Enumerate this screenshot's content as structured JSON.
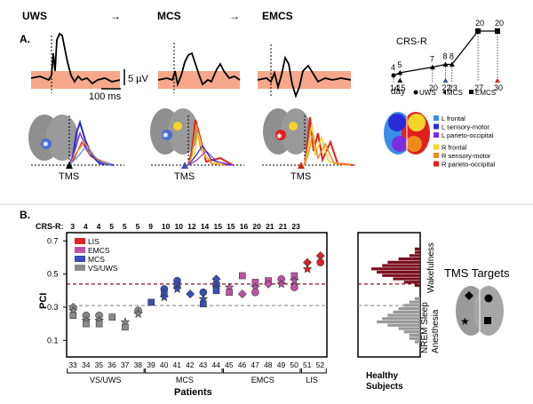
{
  "panel_a": {
    "label": "A.",
    "stages": [
      "UWS",
      "MCS",
      "EMCS"
    ],
    "arrow": "→",
    "scale_voltage": "5 µV",
    "scale_time": "100 ms",
    "tms_label": "TMS",
    "legend_left": [
      "L frontal",
      "L sensory-motor",
      "L parieto-occipital"
    ],
    "legend_right": [
      "R frontal",
      "R sensory-motor",
      "R parieto-occipital"
    ],
    "legend_colors": [
      "#3a8ee8",
      "#2b2bd6",
      "#7b2ee0",
      "#f5d52a",
      "#f08a1c",
      "#e02020"
    ],
    "crs": {
      "title": "CRS-R",
      "days": [
        14,
        15,
        20,
        22,
        23,
        27,
        30
      ],
      "scores": [
        4,
        5,
        7,
        8,
        8,
        20,
        20
      ],
      "day_label": "day",
      "status_legend": [
        "UWS",
        "MCS",
        "EMCS"
      ]
    }
  },
  "panel_b": {
    "label": "B.",
    "crs_label": "CRS-R:",
    "crs_scores": [
      3,
      4,
      4,
      5,
      5,
      5,
      9,
      10,
      10,
      12,
      14,
      15,
      15,
      16,
      20,
      21,
      21,
      23
    ],
    "tms_targets": "TMS Targets",
    "healthy_label": "Healthy\nSubjects",
    "wakefulness": "Wakefulness",
    "nrem": "NREM Sleep",
    "anesthesia": "Anesthesia"
  },
  "chart_data": {
    "type": "scatter",
    "ylabel": "PCI",
    "xlabel": "Patients",
    "ylim": [
      0,
      0.75
    ],
    "yticks": [
      0.1,
      0.3,
      0.5,
      0.7
    ],
    "thresholds": [
      0.44,
      0.31
    ],
    "patients": [
      "33",
      "34",
      "35",
      "36",
      "37",
      "38",
      "39",
      "40",
      "41",
      "42",
      "43",
      "44",
      "45",
      "46",
      "47",
      "48",
      "49",
      "50",
      "51",
      "52"
    ],
    "groups": [
      {
        "label": "VS/UWS",
        "patients": [
          "33",
          "38"
        ]
      },
      {
        "label": "MCS",
        "patients": [
          "39",
          "44"
        ]
      },
      {
        "label": "EMCS",
        "patients": [
          "45",
          "50"
        ]
      },
      {
        "label": "LIS",
        "patients": [
          "51",
          "52"
        ]
      }
    ],
    "legend": [
      "LIS",
      "EMCS",
      "MCS",
      "VS/UWS"
    ],
    "colors": {
      "LIS": "#e0202a",
      "EMCS": "#c252a6",
      "MCS": "#3a4db8",
      "VS/UWS": "#8a8a8a"
    },
    "series": [
      {
        "name": "VS/UWS",
        "points": [
          {
            "patient": "33",
            "markers": [
              [
                0.3,
                "diamond"
              ],
              [
                0.28,
                "star"
              ],
              [
                0.25,
                "square"
              ]
            ]
          },
          {
            "patient": "34",
            "markers": [
              [
                0.25,
                "circle"
              ],
              [
                0.22,
                "star"
              ],
              [
                0.2,
                "square"
              ]
            ]
          },
          {
            "patient": "35",
            "markers": [
              [
                0.25,
                "circle"
              ],
              [
                0.22,
                "star"
              ],
              [
                0.2,
                "square"
              ]
            ]
          },
          {
            "patient": "36",
            "markers": [
              [
                0.24,
                "square"
              ]
            ]
          },
          {
            "patient": "37",
            "markers": [
              [
                0.21,
                "star"
              ],
              [
                0.18,
                "square"
              ]
            ]
          },
          {
            "patient": "38",
            "markers": [
              [
                0.28,
                "circle"
              ],
              [
                0.26,
                "star"
              ]
            ]
          }
        ]
      },
      {
        "name": "MCS",
        "points": [
          {
            "patient": "39",
            "markers": [
              [
                0.33,
                "square"
              ]
            ]
          },
          {
            "patient": "40",
            "markers": [
              [
                0.41,
                "circle"
              ],
              [
                0.38,
                "square"
              ],
              [
                0.36,
                "star"
              ]
            ]
          },
          {
            "patient": "41",
            "markers": [
              [
                0.46,
                "circle"
              ],
              [
                0.43,
                "square"
              ],
              [
                0.41,
                "star"
              ]
            ]
          },
          {
            "patient": "42",
            "markers": [
              [
                0.38,
                "diamond"
              ]
            ]
          },
          {
            "patient": "43",
            "markers": [
              [
                0.39,
                "circle"
              ],
              [
                0.35,
                "star"
              ],
              [
                0.32,
                "square"
              ]
            ]
          },
          {
            "patient": "44",
            "markers": [
              [
                0.47,
                "diamond"
              ],
              [
                0.44,
                "circle"
              ],
              [
                0.42,
                "star"
              ],
              [
                0.4,
                "square"
              ]
            ]
          }
        ]
      },
      {
        "name": "EMCS",
        "points": [
          {
            "patient": "45",
            "markers": [
              [
                0.42,
                "star"
              ],
              [
                0.39,
                "square"
              ]
            ]
          },
          {
            "patient": "46",
            "markers": [
              [
                0.49,
                "square"
              ],
              [
                0.38,
                "diamond"
              ]
            ]
          },
          {
            "patient": "47",
            "markers": [
              [
                0.45,
                "square"
              ],
              [
                0.42,
                "star"
              ],
              [
                0.39,
                "circle"
              ]
            ]
          },
          {
            "patient": "48",
            "markers": [
              [
                0.46,
                "square"
              ],
              [
                0.44,
                "diamond"
              ]
            ]
          },
          {
            "patient": "49",
            "markers": [
              [
                0.47,
                "circle"
              ],
              [
                0.44,
                "star"
              ]
            ]
          },
          {
            "patient": "50",
            "markers": [
              [
                0.49,
                "square"
              ],
              [
                0.46,
                "star"
              ],
              [
                0.42,
                "circle"
              ]
            ]
          }
        ]
      },
      {
        "name": "LIS",
        "points": [
          {
            "patient": "51",
            "markers": [
              [
                0.57,
                "diamond"
              ],
              [
                0.53,
                "star"
              ]
            ]
          },
          {
            "patient": "52",
            "markers": [
              [
                0.61,
                "diamond"
              ],
              [
                0.57,
                "circle"
              ]
            ]
          }
        ]
      }
    ],
    "histogram": {
      "bins": [
        0.09,
        0.11,
        0.13,
        0.15,
        0.17,
        0.19,
        0.21,
        0.23,
        0.25,
        0.27,
        0.29,
        0.31,
        0.33,
        0.35,
        0.37,
        0.39,
        0.41,
        0.43,
        0.45,
        0.47,
        0.49,
        0.51,
        0.53,
        0.55,
        0.57,
        0.59,
        0.61,
        0.63,
        0.65
      ],
      "wakefulness": [
        0,
        0,
        0,
        0,
        0,
        0,
        0,
        0,
        0,
        0,
        0,
        0,
        0,
        0,
        0,
        0,
        0,
        1,
        3,
        5,
        7,
        8,
        9,
        7,
        6,
        4,
        2,
        1,
        1
      ],
      "sleep_anesthesia": [
        1,
        2,
        2,
        3,
        4,
        6,
        8,
        7,
        6,
        5,
        4,
        3,
        2,
        1,
        0,
        0,
        0,
        0,
        0,
        0,
        0,
        0,
        0,
        0,
        0,
        0,
        0,
        0,
        0
      ],
      "colors": {
        "wakefulness": "#7a1020",
        "sleep_anesthesia": "#999999"
      }
    }
  }
}
